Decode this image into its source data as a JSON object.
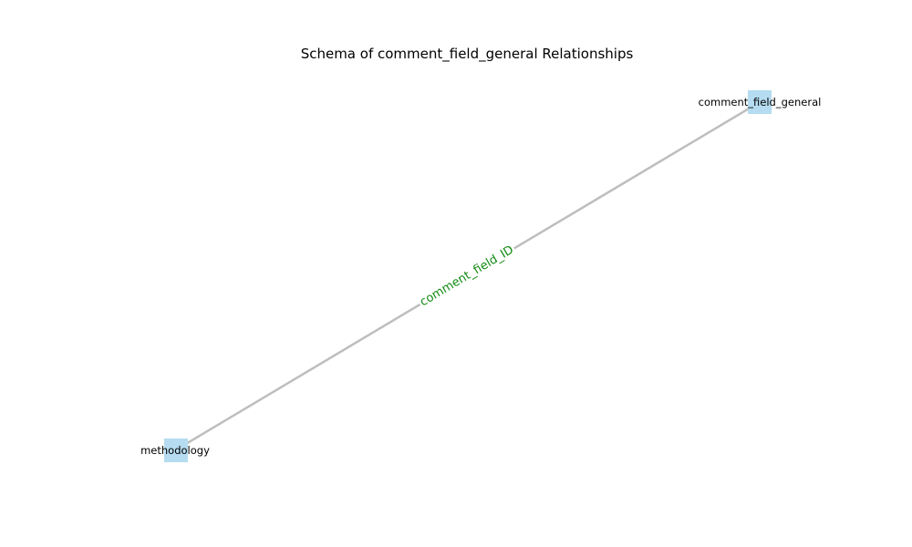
{
  "diagram": {
    "title": "Schema of comment_field_general Relationships",
    "node_color": "#b5dcf0",
    "edge_color": "#bebebe",
    "edge_label_color": "#138a13",
    "nodes": [
      {
        "id": "comment_field_general",
        "label": "comment_field_general"
      },
      {
        "id": "methodology",
        "label": "methodology"
      }
    ],
    "edges": [
      {
        "from": "methodology",
        "to": "comment_field_general",
        "label": "comment_field_ID"
      }
    ]
  }
}
